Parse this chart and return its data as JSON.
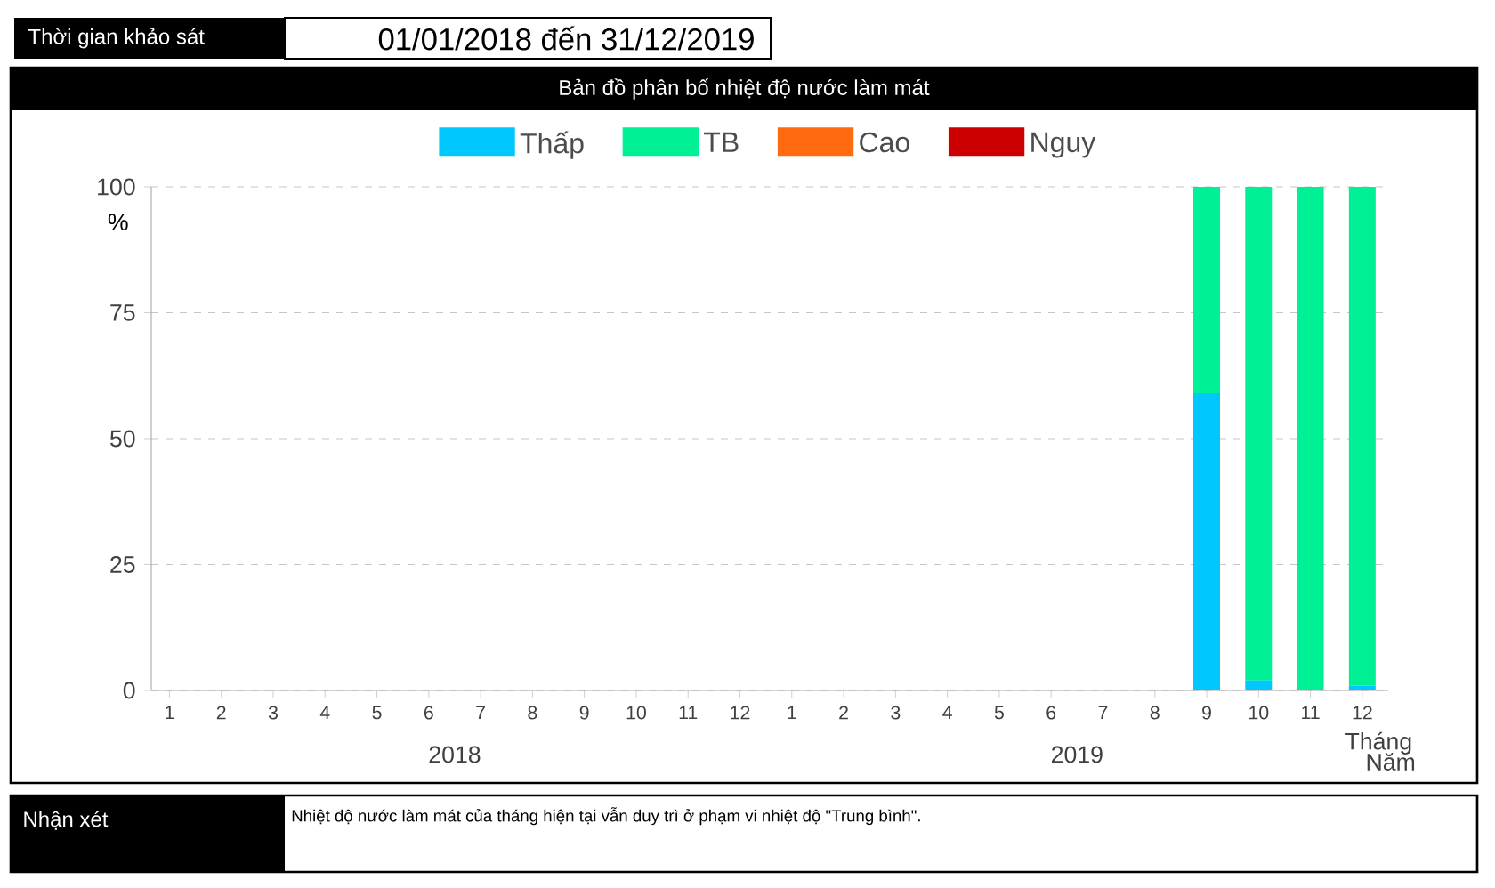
{
  "chart_data": {
    "type": "bar",
    "stacked": true,
    "title": "Bản đồ phân bố nhiệt độ nước làm mát",
    "ylabel": "%",
    "xlabel": "Tháng",
    "categories": [
      "1",
      "2",
      "3",
      "4",
      "5",
      "6",
      "7",
      "8",
      "9",
      "10",
      "11",
      "12",
      "1",
      "2",
      "3",
      "4",
      "5",
      "6",
      "7",
      "8",
      "9",
      "10",
      "11",
      "12"
    ],
    "series": [
      {
        "name": "Thấp",
        "color": "#00c8ff",
        "values": [
          null,
          null,
          null,
          null,
          null,
          null,
          null,
          null,
          null,
          null,
          null,
          null,
          null,
          null,
          null,
          null,
          null,
          null,
          null,
          null,
          59,
          2,
          0,
          1
        ]
      },
      {
        "name": "TB",
        "color": "#00f096",
        "values": [
          null,
          null,
          null,
          null,
          null,
          null,
          null,
          null,
          null,
          null,
          null,
          null,
          null,
          null,
          null,
          null,
          null,
          null,
          null,
          null,
          41,
          98,
          100,
          99
        ]
      },
      {
        "name": "Cao",
        "color": "#ff6a10",
        "values": [
          null,
          null,
          null,
          null,
          null,
          null,
          null,
          null,
          null,
          null,
          null,
          null,
          null,
          null,
          null,
          null,
          null,
          null,
          null,
          null,
          0,
          0,
          0,
          0
        ]
      },
      {
        "name": "Nguy",
        "color": "#cc0000",
        "values": [
          null,
          null,
          null,
          null,
          null,
          null,
          null,
          null,
          null,
          null,
          null,
          null,
          null,
          null,
          null,
          null,
          null,
          null,
          null,
          null,
          0,
          0,
          0,
          0
        ]
      }
    ],
    "ylim": [
      0,
      100
    ],
    "yticks": [
      0,
      25,
      50,
      75,
      100
    ],
    "grid": "y",
    "legend": "top",
    "annotations": [
      "Thời gian khảo sát",
      "01/01/2018 đến 31/12/2019",
      "2018",
      "2019",
      "Năm",
      "Nhận xét",
      "Nhiệt độ nước làm mát của tháng hiện tại vẫn duy trì ở phạm vi nhiệt độ \"Trung bình\"."
    ]
  }
}
